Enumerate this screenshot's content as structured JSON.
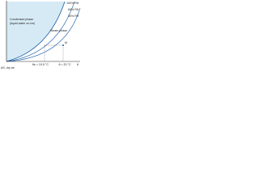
{
  "labels": {
    "condensed": "Condensed phase",
    "condensed_note": "(liquid water on ice)",
    "steam": "Steam phase",
    "rh_100": "100% RH",
    "rh_60": "60% RH",
    "rh_30": "30% RH",
    "point": "M",
    "theta_s": "θs = 10.5 °C",
    "theta": "θ = 20 °C",
    "x_axis": "θ",
    "y_axis": "AS, dry air"
  }
}
